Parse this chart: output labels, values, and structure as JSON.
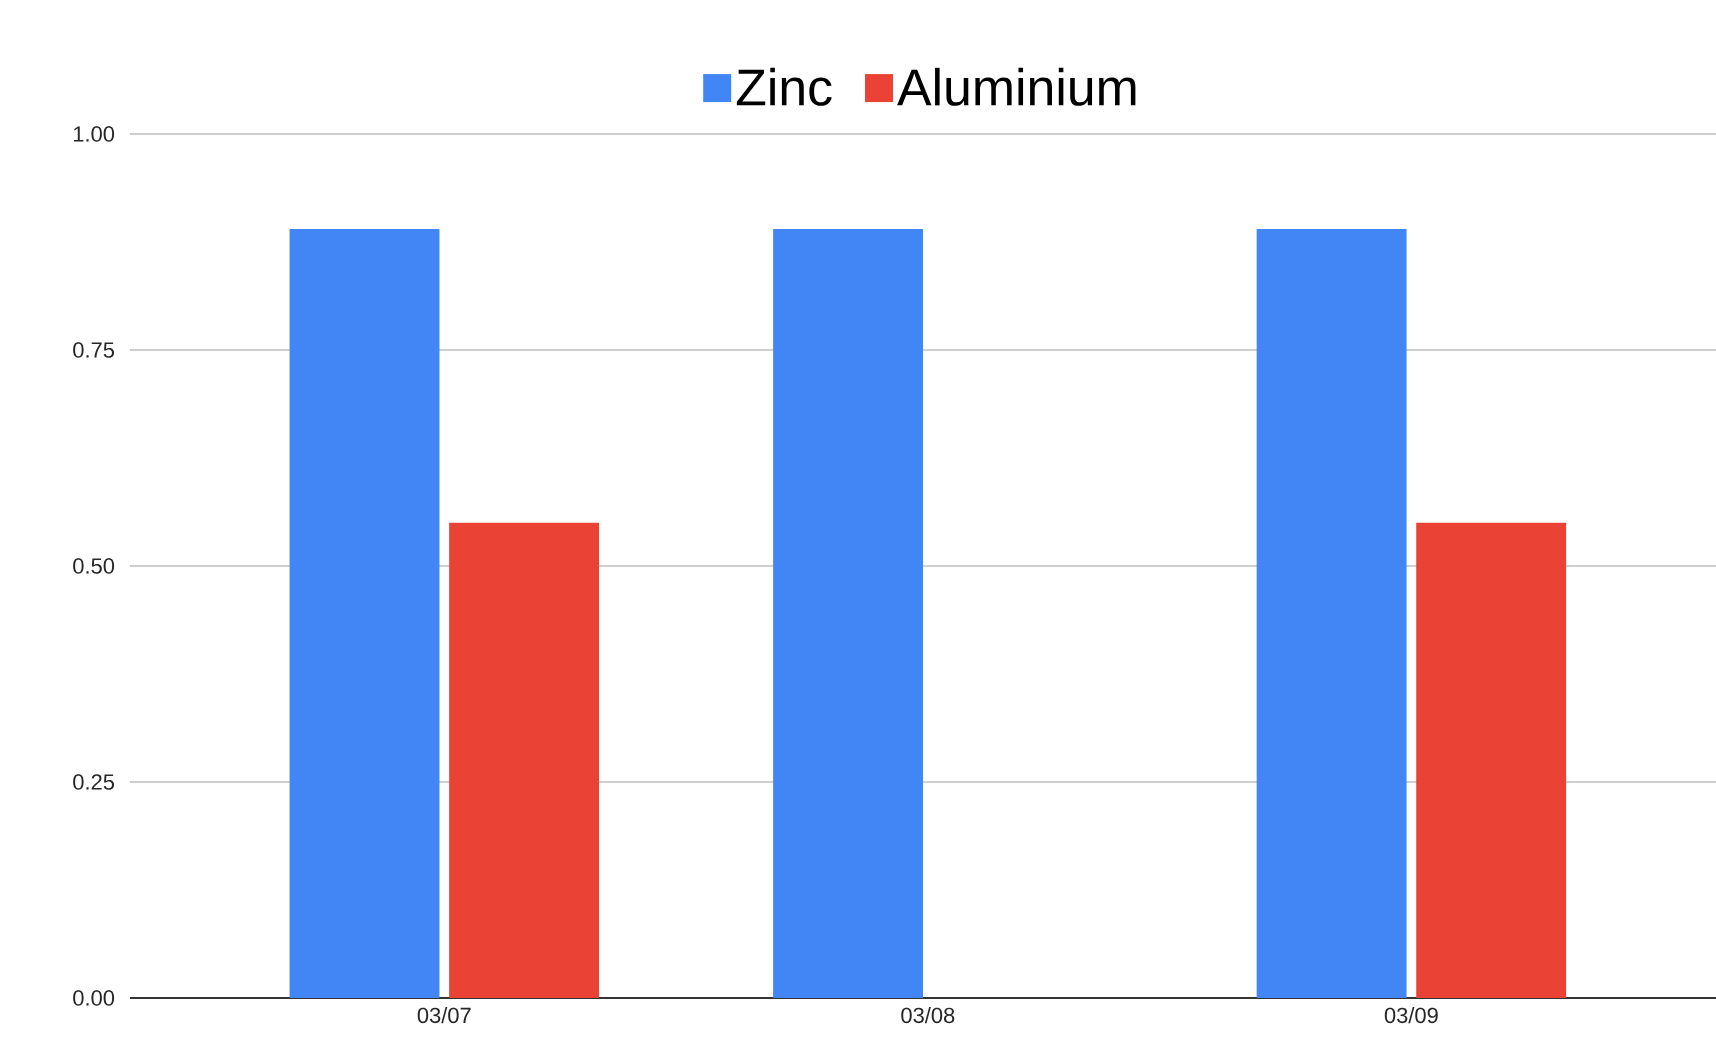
{
  "chart_data": {
    "type": "bar",
    "categories": [
      "03/07",
      "03/08",
      "03/09"
    ],
    "series": [
      {
        "name": "Zinc",
        "color": "#4285f4",
        "values": [
          0.89,
          0.89,
          0.89
        ]
      },
      {
        "name": "Aluminium",
        "color": "#ea4335",
        "values": [
          0.55,
          null,
          0.55
        ]
      }
    ],
    "ylim": [
      0,
      1
    ],
    "yticks": [
      {
        "value": 0,
        "label": "0.00"
      },
      {
        "value": 0.25,
        "label": "0.25"
      },
      {
        "value": 0.5,
        "label": "0.50"
      },
      {
        "value": 0.75,
        "label": "0.75"
      },
      {
        "value": 1,
        "label": "1.00"
      }
    ],
    "grid": "y",
    "legend": "top"
  }
}
